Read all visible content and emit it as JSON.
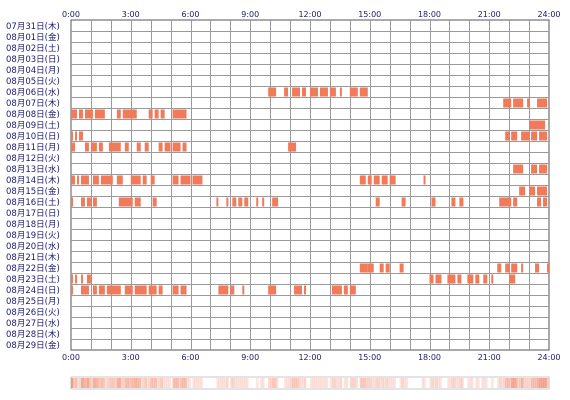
{
  "chart_data": {
    "type": "heatmap",
    "title": "",
    "xlabel": "",
    "ylabel": "",
    "x_unit": "hours",
    "xlim": [
      0,
      24
    ],
    "xticks": [
      "0:00",
      "3:00",
      "6:00",
      "9:00",
      "12:00",
      "15:00",
      "18:00",
      "21:00",
      "24:00"
    ],
    "grid": true,
    "bar_color": "#f07a5a",
    "summary_strip_color": "#f07a5a",
    "rows": [
      {
        "label": "07月31日(木)",
        "blocks": []
      },
      {
        "label": "08月01日(金)",
        "blocks": []
      },
      {
        "label": "08月02日(土)",
        "blocks": []
      },
      {
        "label": "08月03日(日)",
        "blocks": []
      },
      {
        "label": "08月04日(月)",
        "blocks": []
      },
      {
        "label": "08月05日(火)",
        "blocks": []
      },
      {
        "label": "08月06日(水)",
        "blocks": [
          [
            9.9,
            10.3
          ],
          [
            10.7,
            10.9
          ],
          [
            11.1,
            11.5
          ],
          [
            11.6,
            11.8
          ],
          [
            12.0,
            12.4
          ],
          [
            12.5,
            12.9
          ],
          [
            13.0,
            13.3
          ],
          [
            13.5,
            13.6
          ],
          [
            14.0,
            14.4
          ],
          [
            14.5,
            14.9
          ]
        ]
      },
      {
        "label": "08月07日(木)",
        "blocks": [
          [
            21.7,
            22.1
          ],
          [
            22.2,
            22.7
          ],
          [
            22.9,
            23.0
          ],
          [
            23.4,
            23.9
          ]
        ]
      },
      {
        "label": "08月08日(金)",
        "blocks": [
          [
            0.0,
            0.3
          ],
          [
            0.4,
            0.6
          ],
          [
            0.7,
            1.1
          ],
          [
            1.2,
            1.7
          ],
          [
            2.3,
            2.5
          ],
          [
            2.6,
            3.3
          ],
          [
            3.9,
            4.1
          ],
          [
            4.2,
            4.4
          ],
          [
            4.5,
            4.7
          ],
          [
            5.1,
            5.8
          ]
        ]
      },
      {
        "label": "08月09日(土)",
        "blocks": [
          [
            23.0,
            23.8
          ]
        ]
      },
      {
        "label": "08月10日(日)",
        "blocks": [
          [
            0.0,
            0.1
          ],
          [
            0.2,
            0.3
          ],
          [
            0.4,
            0.6
          ],
          [
            21.8,
            22.0
          ],
          [
            22.1,
            22.4
          ],
          [
            22.6,
            23.0
          ],
          [
            23.1,
            23.4
          ],
          [
            23.5,
            23.9
          ]
        ]
      },
      {
        "label": "08月11日(月)",
        "blocks": [
          [
            0.0,
            0.2
          ],
          [
            0.7,
            0.9
          ],
          [
            1.0,
            1.3
          ],
          [
            1.4,
            1.6
          ],
          [
            1.9,
            2.5
          ],
          [
            2.7,
            2.9
          ],
          [
            3.3,
            3.5
          ],
          [
            3.7,
            3.9
          ],
          [
            4.4,
            4.6
          ],
          [
            4.7,
            5.0
          ],
          [
            5.1,
            5.5
          ],
          [
            5.6,
            5.8
          ],
          [
            10.9,
            11.3
          ]
        ]
      },
      {
        "label": "08月12日(火)",
        "blocks": []
      },
      {
        "label": "08月13日(水)",
        "blocks": [
          [
            22.2,
            22.7
          ],
          [
            23.1,
            23.4
          ],
          [
            23.5,
            23.9
          ]
        ]
      },
      {
        "label": "08月14日(木)",
        "blocks": [
          [
            0.0,
            0.2
          ],
          [
            0.3,
            0.4
          ],
          [
            0.5,
            0.9
          ],
          [
            1.1,
            1.4
          ],
          [
            1.5,
            2.1
          ],
          [
            2.3,
            2.6
          ],
          [
            3.0,
            3.5
          ],
          [
            3.6,
            3.8
          ],
          [
            4.0,
            4.2
          ],
          [
            5.1,
            5.4
          ],
          [
            5.5,
            6.0
          ],
          [
            6.1,
            6.6
          ],
          [
            14.5,
            14.8
          ],
          [
            14.9,
            15.1
          ],
          [
            15.2,
            15.5
          ],
          [
            15.6,
            15.9
          ],
          [
            16.0,
            16.3
          ],
          [
            17.7,
            17.8
          ]
        ]
      },
      {
        "label": "08月15日(金)",
        "blocks": [
          [
            22.5,
            22.8
          ],
          [
            23.0,
            23.3
          ],
          [
            23.4,
            23.9
          ]
        ]
      },
      {
        "label": "08月16日(土)",
        "blocks": [
          [
            0.0,
            0.1
          ],
          [
            0.5,
            0.7
          ],
          [
            0.8,
            1.0
          ],
          [
            1.1,
            1.3
          ],
          [
            2.4,
            3.1
          ],
          [
            3.2,
            3.5
          ],
          [
            4.1,
            4.3
          ],
          [
            7.3,
            7.4
          ],
          [
            7.8,
            7.9
          ],
          [
            8.1,
            8.3
          ],
          [
            8.4,
            8.6
          ],
          [
            8.7,
            8.9
          ],
          [
            9.3,
            9.4
          ],
          [
            9.6,
            9.7
          ],
          [
            10.1,
            10.4
          ],
          [
            15.3,
            15.5
          ],
          [
            16.6,
            16.8
          ],
          [
            18.1,
            18.3
          ],
          [
            19.1,
            19.3
          ],
          [
            19.5,
            19.7
          ],
          [
            21.5,
            22.1
          ],
          [
            22.2,
            22.4
          ],
          [
            23.4,
            23.6
          ],
          [
            23.7,
            23.9
          ]
        ]
      },
      {
        "label": "08月17日(日)",
        "blocks": []
      },
      {
        "label": "08月18日(月)",
        "blocks": []
      },
      {
        "label": "08月19日(火)",
        "blocks": []
      },
      {
        "label": "08月20日(水)",
        "blocks": []
      },
      {
        "label": "08月21日(木)",
        "blocks": []
      },
      {
        "label": "08月22日(金)",
        "blocks": [
          [
            14.5,
            14.9
          ],
          [
            14.9,
            15.2
          ],
          [
            15.5,
            15.7
          ],
          [
            15.8,
            16.0
          ],
          [
            16.5,
            16.7
          ],
          [
            21.4,
            21.6
          ],
          [
            21.8,
            22.0
          ],
          [
            22.1,
            22.4
          ],
          [
            22.6,
            22.7
          ],
          [
            23.3,
            23.5
          ],
          [
            23.9,
            24.0
          ]
        ]
      },
      {
        "label": "08月23日(土)",
        "blocks": [
          [
            0.0,
            0.1
          ],
          [
            0.2,
            0.3
          ],
          [
            0.5,
            0.6
          ],
          [
            0.8,
            1.0
          ],
          [
            18.0,
            18.2
          ],
          [
            18.3,
            18.6
          ],
          [
            18.9,
            19.3
          ],
          [
            19.4,
            19.6
          ],
          [
            19.9,
            20.2
          ],
          [
            20.3,
            20.5
          ],
          [
            20.7,
            20.9
          ],
          [
            21.1,
            21.2
          ],
          [
            22.0,
            22.3
          ]
        ]
      },
      {
        "label": "08月24日(日)",
        "blocks": [
          [
            0.0,
            0.1
          ],
          [
            0.5,
            0.9
          ],
          [
            1.1,
            1.3
          ],
          [
            1.4,
            1.7
          ],
          [
            1.8,
            2.5
          ],
          [
            2.7,
            3.1
          ],
          [
            3.2,
            3.8
          ],
          [
            3.9,
            4.3
          ],
          [
            4.4,
            4.6
          ],
          [
            5.1,
            5.4
          ],
          [
            5.5,
            5.8
          ],
          [
            7.4,
            7.9
          ],
          [
            8.0,
            8.2
          ],
          [
            8.6,
            8.7
          ],
          [
            9.9,
            10.3
          ],
          [
            11.2,
            11.6
          ],
          [
            11.7,
            11.8
          ],
          [
            13.1,
            13.6
          ],
          [
            13.7,
            13.9
          ],
          [
            14.0,
            14.3
          ]
        ]
      },
      {
        "label": "08月25日(月)",
        "blocks": []
      },
      {
        "label": "08月26日(火)",
        "blocks": []
      },
      {
        "label": "08月27日(水)",
        "blocks": []
      },
      {
        "label": "08月28日(木)",
        "blocks": []
      },
      {
        "label": "08月29日(金)",
        "blocks": []
      }
    ]
  }
}
